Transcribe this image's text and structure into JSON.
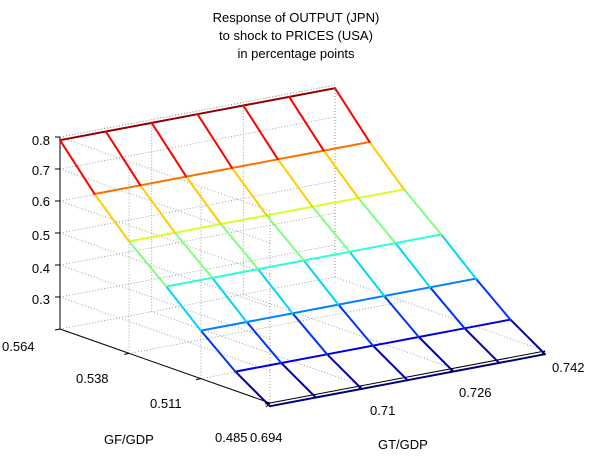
{
  "chart_data": {
    "type": "surface-mesh",
    "title_lines": [
      "Response of OUTPUT (JPN)",
      "to shock to PRICES (USA)",
      "in percentage points"
    ],
    "xlabel": "GT/GDP",
    "ylabel": "GF/GDP",
    "zlabel": "",
    "x_ticks": [
      "0.694",
      "0.71",
      "0.726",
      "0.742"
    ],
    "y_ticks": [
      "0.485",
      "0.511",
      "0.538",
      "0.564"
    ],
    "z_ticks": [
      "0.3",
      "0.4",
      "0.5",
      "0.6",
      "0.7",
      "0.8"
    ],
    "x": [
      0.694,
      0.702,
      0.71,
      0.718,
      0.726,
      0.734,
      0.742
    ],
    "y": [
      0.485,
      0.498,
      0.511,
      0.524,
      0.538,
      0.551,
      0.564
    ],
    "z_by_y_row": [
      0.19,
      0.26,
      0.35,
      0.45,
      0.55,
      0.66,
      0.79
    ],
    "zlim": [
      0.2,
      0.8
    ],
    "colormap": "jet",
    "grid": true
  }
}
